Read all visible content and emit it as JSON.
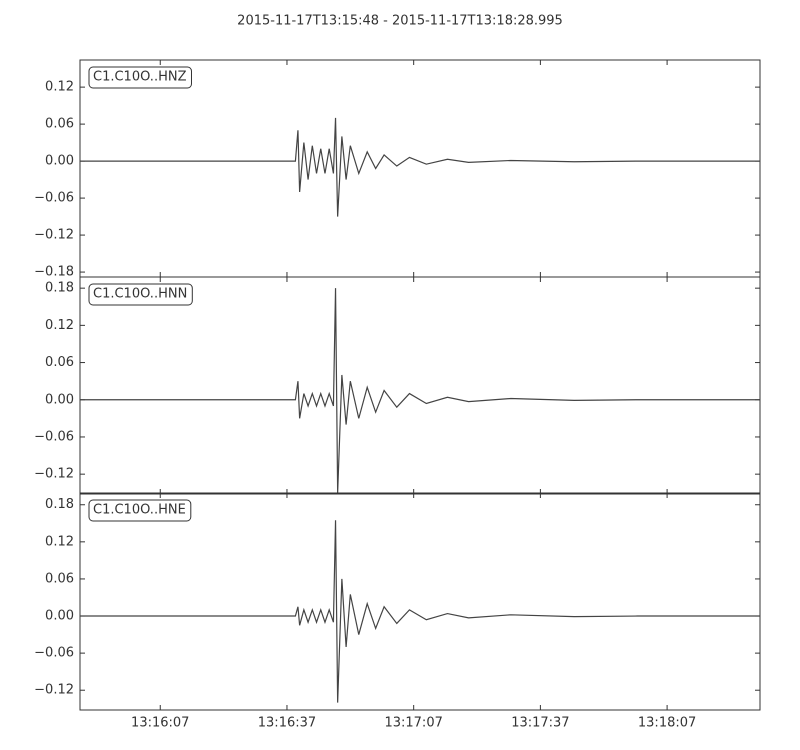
{
  "title": "2015-11-17T13:15:48  -  2015-11-17T13:18:28.995",
  "chart_data": [
    {
      "type": "line",
      "series": [
        {
          "name": "C1.C10O..HNZ",
          "color": "#444444",
          "values": [
            0,
            0,
            0.05,
            -0.05,
            0.03,
            -0.03,
            0.025,
            -0.02,
            0.02,
            -0.02,
            0.02,
            -0.02,
            0.07,
            -0.09,
            0.04,
            -0.03,
            0.025,
            -0.02,
            0.015,
            -0.012,
            0.01,
            -0.008,
            0.006,
            -0.005,
            0.003,
            -0.002,
            0.001,
            -0.001,
            0,
            0
          ]
        }
      ],
      "x": [
        "13:15:48",
        "13:16:39",
        "13:16:39.6",
        "13:16:40",
        "13:16:41",
        "13:16:42",
        "13:16:43",
        "13:16:44",
        "13:16:45",
        "13:16:46",
        "13:16:47",
        "13:16:48",
        "13:16:48.5",
        "13:16:49",
        "13:16:50",
        "13:16:51",
        "13:16:52",
        "13:16:54",
        "13:16:56",
        "13:16:58",
        "13:17:00",
        "13:17:03",
        "13:17:06",
        "13:17:10",
        "13:17:15",
        "13:17:20",
        "13:17:30",
        "13:17:45",
        "13:18:00",
        "13:18:28.995"
      ],
      "xlim": [
        "13:15:48",
        "13:18:28.995"
      ],
      "ylim": [
        -0.188,
        0.164
      ],
      "yticks": [
        {
          "value": -0.18,
          "label": "−0.18"
        },
        {
          "value": -0.12,
          "label": "−0.12"
        },
        {
          "value": -0.06,
          "label": "−0.06"
        },
        {
          "value": 0,
          "label": "0.00"
        },
        0.06,
        0.12
      ]
    },
    {
      "type": "line",
      "series": [
        {
          "name": "C1.C10O..HNN",
          "color": "#444444",
          "values": [
            0,
            0,
            0.03,
            -0.03,
            0.01,
            -0.01,
            0.01,
            -0.01,
            0.01,
            -0.01,
            0.01,
            -0.01,
            0.18,
            -0.15,
            0.04,
            -0.04,
            0.03,
            -0.03,
            0.02,
            -0.02,
            0.015,
            -0.012,
            0.01,
            -0.006,
            0.004,
            -0.003,
            0.002,
            -0.001,
            0,
            0
          ]
        }
      ],
      "x": [
        "13:15:48",
        "13:16:39",
        "13:16:39.6",
        "13:16:40",
        "13:16:41",
        "13:16:42",
        "13:16:43",
        "13:16:44",
        "13:16:45",
        "13:16:46",
        "13:16:47",
        "13:16:48",
        "13:16:48.5",
        "13:16:49",
        "13:16:50",
        "13:16:51",
        "13:16:52",
        "13:16:54",
        "13:16:56",
        "13:16:58",
        "13:17:00",
        "13:17:03",
        "13:17:06",
        "13:17:10",
        "13:17:15",
        "13:17:20",
        "13:17:30",
        "13:17:45",
        "13:18:00",
        "13:18:28.995"
      ],
      "xlim": [
        "13:15:48",
        "13:18:28.995"
      ],
      "ylim": [
        -0.152,
        0.198
      ],
      "yticks": [
        {
          "value": -0.12,
          "label": "−0.12"
        },
        {
          "value": -0.06,
          "label": "−0.06"
        },
        {
          "value": 0,
          "label": "0.00"
        },
        0.06,
        0.12,
        0.18
      ]
    },
    {
      "type": "line",
      "series": [
        {
          "name": "C1.C10O..HNE",
          "color": "#444444",
          "values": [
            0,
            0,
            0.015,
            -0.015,
            0.01,
            -0.01,
            0.01,
            -0.01,
            0.01,
            -0.01,
            0.01,
            -0.01,
            0.155,
            -0.14,
            0.06,
            -0.05,
            0.035,
            -0.03,
            0.02,
            -0.02,
            0.015,
            -0.012,
            0.01,
            -0.006,
            0.004,
            -0.003,
            0.002,
            -0.001,
            0,
            0
          ]
        }
      ],
      "x": [
        "13:15:48",
        "13:16:39",
        "13:16:39.6",
        "13:16:40",
        "13:16:41",
        "13:16:42",
        "13:16:43",
        "13:16:44",
        "13:16:45",
        "13:16:46",
        "13:16:47",
        "13:16:48",
        "13:16:48.5",
        "13:16:49",
        "13:16:50",
        "13:16:51",
        "13:16:52",
        "13:16:54",
        "13:16:56",
        "13:16:58",
        "13:17:00",
        "13:17:03",
        "13:17:06",
        "13:17:10",
        "13:17:15",
        "13:17:20",
        "13:17:30",
        "13:17:45",
        "13:18:00",
        "13:18:28.995"
      ],
      "xlim": [
        "13:15:48",
        "13:18:28.995"
      ],
      "ylim": [
        -0.152,
        0.199
      ],
      "yticks": [
        {
          "value": -0.12,
          "label": "−0.12"
        },
        {
          "value": -0.06,
          "label": "−0.06"
        },
        {
          "value": 0,
          "label": "0.00"
        },
        0.06,
        0.12,
        0.18
      ],
      "xticks": [
        {
          "value": "13:16:07",
          "label": "13:16:07"
        },
        {
          "value": "13:16:37",
          "label": "13:16:37"
        },
        {
          "value": "13:17:07",
          "label": "13:17:07"
        },
        {
          "value": "13:17:37",
          "label": "13:17:37"
        },
        {
          "value": "13:18:07",
          "label": "13:18:07"
        }
      ]
    }
  ]
}
